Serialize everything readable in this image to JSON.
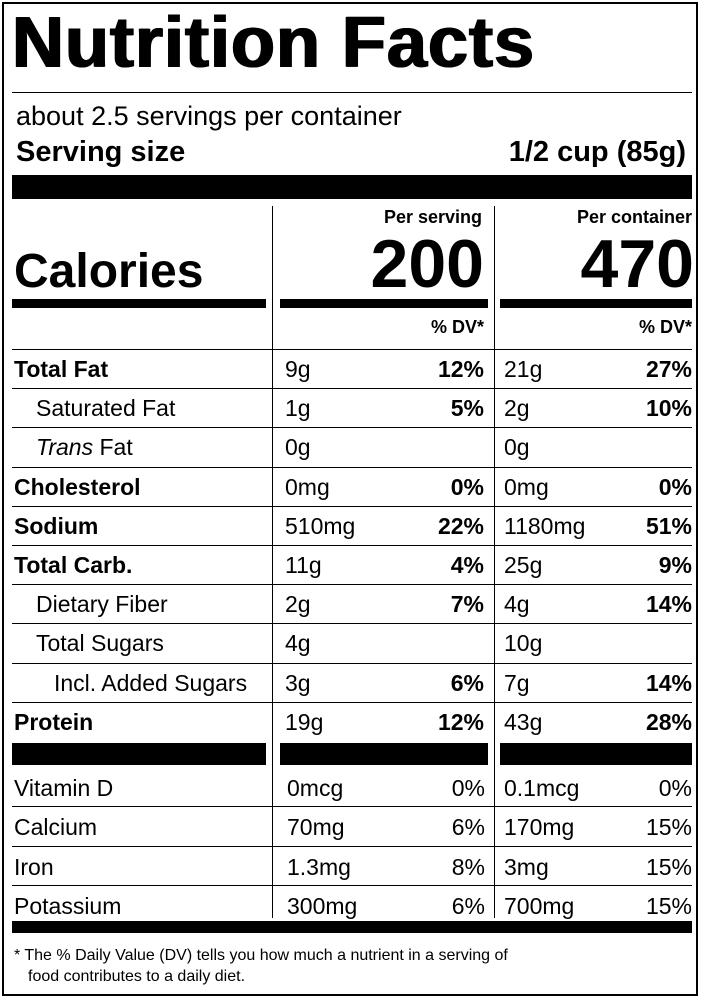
{
  "title": "Nutrition Facts",
  "servings_per_container": "about 2.5 servings per container",
  "serving_size_label": "Serving size",
  "serving_size_value": "1/2 cup (85g)",
  "col_headers": {
    "per_serving": "Per serving",
    "per_container": "Per container"
  },
  "calories": {
    "label": "Calories",
    "per_serving": "200",
    "per_container": "470"
  },
  "dv_header": "% DV*",
  "nutrients": [
    {
      "name": "Total Fat",
      "bold": true,
      "indent": 0,
      "s_amt": "9g",
      "s_dv": "12%",
      "c_amt": "21g",
      "c_dv": "27%"
    },
    {
      "name": "Saturated Fat",
      "bold": false,
      "indent": 1,
      "s_amt": "1g",
      "s_dv": "5%",
      "c_amt": "2g",
      "c_dv": "10%"
    },
    {
      "name_italic": "Trans",
      "name": " Fat",
      "bold": false,
      "indent": 1,
      "s_amt": "0g",
      "s_dv": "",
      "c_amt": "0g",
      "c_dv": ""
    },
    {
      "name": "Cholesterol",
      "bold": true,
      "indent": 0,
      "s_amt": "0mg",
      "s_dv": "0%",
      "c_amt": "0mg",
      "c_dv": "0%"
    },
    {
      "name": "Sodium",
      "bold": true,
      "indent": 0,
      "s_amt": "510mg",
      "s_dv": "22%",
      "c_amt": "1180mg",
      "c_dv": "51%"
    },
    {
      "name": "Total Carb.",
      "bold": true,
      "indent": 0,
      "s_amt": "11g",
      "s_dv": "4%",
      "c_amt": "25g",
      "c_dv": "9%"
    },
    {
      "name": "Dietary Fiber",
      "bold": false,
      "indent": 1,
      "s_amt": "2g",
      "s_dv": "7%",
      "c_amt": "4g",
      "c_dv": "14%"
    },
    {
      "name": "Total Sugars",
      "bold": false,
      "indent": 1,
      "s_amt": "4g",
      "s_dv": "",
      "c_amt": "10g",
      "c_dv": ""
    },
    {
      "name": "Incl. Added Sugars",
      "bold": false,
      "indent": 2,
      "s_amt": "3g",
      "s_dv": "6%",
      "c_amt": "7g",
      "c_dv": "14%"
    },
    {
      "name": "Protein",
      "bold": true,
      "indent": 0,
      "s_amt": "19g",
      "s_dv": "12%",
      "c_amt": "43g",
      "c_dv": "28%"
    }
  ],
  "vitamins": [
    {
      "name": "Vitamin D",
      "s_amt": "0mcg",
      "s_dv": "0%",
      "c_amt": "0.1mcg",
      "c_dv": "0%"
    },
    {
      "name": "Calcium",
      "s_amt": "70mg",
      "s_dv": "6%",
      "c_amt": "170mg",
      "c_dv": "15%"
    },
    {
      "name": "Iron",
      "s_amt": "1.3mg",
      "s_dv": "8%",
      "c_amt": "3mg",
      "c_dv": "15%"
    },
    {
      "name": "Potassium",
      "s_amt": "300mg",
      "s_dv": "6%",
      "c_amt": "700mg",
      "c_dv": "15%"
    }
  ],
  "footnote_line1": "* The % Daily Value (DV) tells you how much a nutrient in a serving of",
  "footnote_line2": "food contributes to a daily diet."
}
